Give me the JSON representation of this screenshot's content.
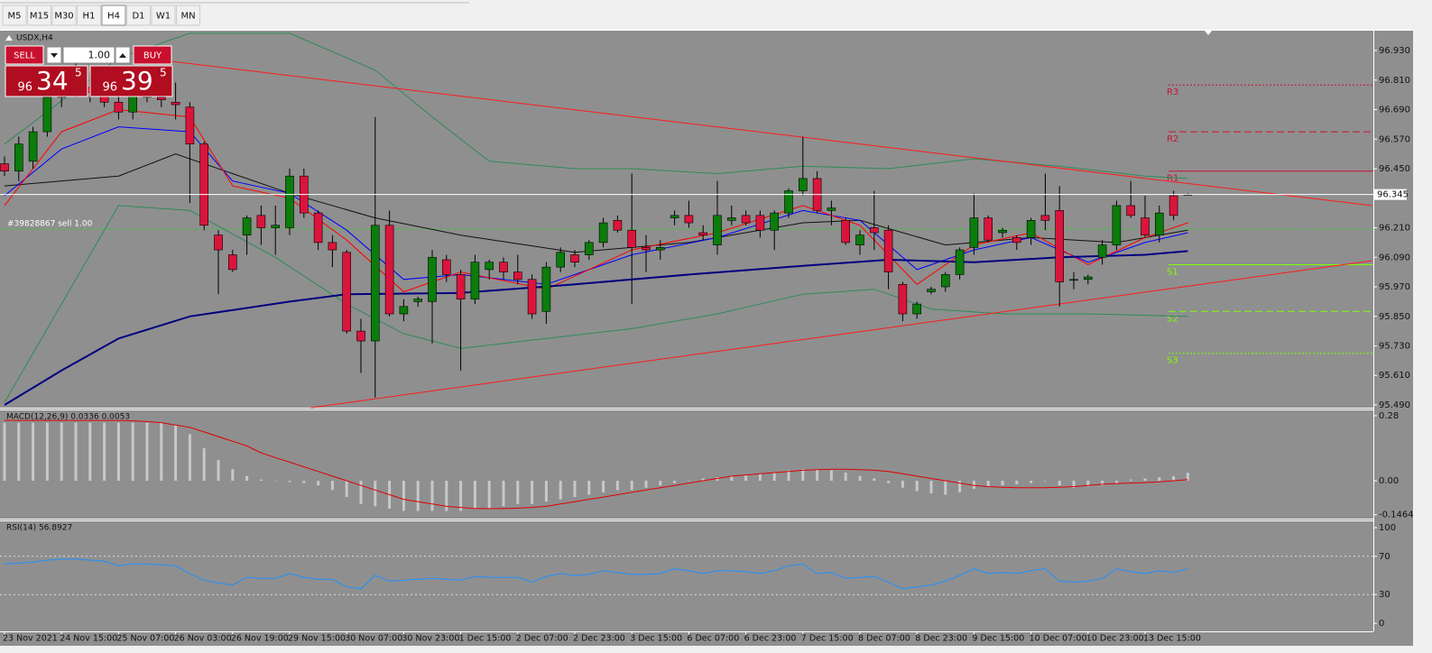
{
  "toolbar": {
    "timeframes": [
      "M5",
      "M15",
      "M30",
      "H1",
      "H4",
      "D1",
      "W1",
      "MN"
    ],
    "active": "H4"
  },
  "trade_panel": {
    "sell_label": "SELL",
    "lots": "1.00",
    "buy_label": "BUY",
    "sell_price": {
      "big": "96",
      "main": "34",
      "small": "5"
    },
    "buy_price": {
      "big": "96",
      "main": "39",
      "small": "5"
    }
  },
  "chart_data": [
    {
      "type": "candlestick",
      "title": "USDX,H4",
      "categories": [
        "23 Nov 2021",
        null,
        null,
        null,
        "24 Nov 15:00",
        null,
        null,
        null,
        "25 Nov 07:00",
        null,
        null,
        null,
        "26 Nov 03:00",
        null,
        null,
        null,
        "26 Nov 19:00",
        null,
        null,
        null,
        "29 Nov 15:00",
        null,
        null,
        null,
        "30 Nov 07:00",
        null,
        null,
        null,
        "30 Nov 23:00",
        null,
        null,
        null,
        "1 Dec 15:00",
        null,
        null,
        null,
        "2 Dec 07:00",
        null,
        null,
        null,
        "2 Dec 23:00",
        null,
        null,
        null,
        "3 Dec 15:00",
        null,
        null,
        null,
        "6 Dec 07:00",
        null,
        null,
        null,
        "6 Dec 23:00",
        null,
        null,
        null,
        "7 Dec 15:00",
        null,
        null,
        null,
        "8 Dec 07:00",
        null,
        null,
        null,
        "8 Dec 23:00",
        null,
        null,
        null,
        "9 Dec 15:00",
        null,
        null,
        null,
        "10 Dec 07:00",
        null,
        null,
        null,
        "10 Dec 23:00",
        null,
        null,
        null,
        "13 Dec 15:00",
        null,
        null,
        null
      ],
      "open": [
        96.47,
        96.44,
        96.48,
        96.6,
        96.74,
        96.8,
        96.78,
        96.76,
        96.72,
        96.68,
        96.76,
        96.74,
        96.72,
        96.7,
        96.55,
        96.18,
        96.1,
        96.18,
        96.26,
        96.21,
        96.21,
        96.42,
        96.27,
        96.15,
        96.11,
        95.79,
        95.75,
        96.22,
        95.86,
        95.91,
        95.91,
        96.08,
        96.02,
        95.92,
        96.04,
        96.07,
        96.03,
        96.0,
        95.87,
        96.05,
        96.1,
        96.1,
        96.15,
        96.24,
        96.2,
        96.13,
        96.12,
        96.25,
        96.26,
        96.19,
        96.14,
        96.24,
        96.26,
        96.26,
        96.2,
        96.27,
        96.36,
        96.41,
        96.28,
        96.24,
        96.14,
        96.21,
        96.2,
        95.98,
        95.86,
        95.95,
        95.97,
        96.02,
        96.13,
        96.25,
        96.19,
        96.17,
        96.17,
        96.26,
        96.28,
        96.0,
        96.0,
        96.09,
        96.14,
        96.3,
        96.25,
        96.18,
        96.34,
        96.345
      ],
      "high": [
        96.5,
        96.58,
        96.62,
        96.77,
        96.85,
        96.88,
        96.84,
        96.8,
        96.76,
        96.8,
        96.82,
        96.78,
        96.8,
        96.72,
        96.56,
        96.2,
        96.12,
        96.26,
        96.3,
        96.3,
        96.45,
        96.45,
        96.28,
        96.18,
        96.12,
        95.84,
        96.66,
        96.28,
        95.92,
        95.93,
        96.12,
        96.1,
        96.04,
        96.1,
        96.08,
        96.09,
        96.1,
        96.02,
        96.07,
        96.13,
        96.12,
        96.16,
        96.25,
        96.26,
        96.43,
        96.18,
        96.16,
        96.28,
        96.32,
        96.22,
        96.4,
        96.3,
        96.28,
        96.28,
        96.28,
        96.37,
        96.58,
        96.44,
        96.32,
        96.25,
        96.2,
        96.36,
        96.22,
        95.99,
        95.91,
        95.97,
        96.03,
        96.13,
        96.35,
        96.26,
        96.21,
        96.18,
        96.25,
        96.43,
        96.38,
        96.03,
        96.02,
        96.16,
        96.32,
        96.4,
        96.34,
        96.3,
        96.36,
        96.35
      ],
      "low": [
        96.42,
        96.4,
        96.45,
        96.58,
        96.7,
        96.74,
        96.72,
        96.7,
        96.65,
        96.65,
        96.72,
        96.7,
        96.65,
        96.31,
        96.2,
        95.94,
        96.03,
        96.1,
        96.14,
        96.1,
        96.18,
        96.25,
        96.12,
        96.05,
        95.78,
        95.62,
        95.52,
        95.85,
        95.83,
        95.89,
        95.74,
        95.99,
        95.63,
        95.9,
        96.0,
        96.0,
        95.98,
        95.84,
        95.82,
        96.03,
        96.05,
        96.08,
        96.13,
        96.19,
        95.9,
        96.03,
        96.08,
        96.22,
        96.21,
        96.16,
        96.1,
        96.22,
        96.22,
        96.17,
        96.12,
        96.25,
        96.34,
        96.27,
        96.22,
        96.14,
        96.1,
        96.12,
        95.96,
        95.83,
        95.84,
        95.94,
        95.95,
        96.0,
        96.1,
        96.15,
        96.17,
        96.12,
        96.14,
        96.2,
        95.89,
        95.96,
        95.98,
        96.06,
        96.12,
        96.25,
        96.17,
        96.15,
        96.24,
        96.34
      ],
      "close": [
        96.44,
        96.55,
        96.6,
        96.74,
        96.8,
        96.78,
        96.76,
        96.72,
        96.68,
        96.76,
        96.74,
        96.73,
        96.71,
        96.55,
        96.22,
        96.12,
        96.04,
        96.25,
        96.21,
        96.22,
        96.42,
        96.27,
        96.15,
        96.12,
        95.79,
        95.75,
        96.22,
        95.86,
        95.89,
        95.92,
        96.09,
        96.02,
        95.92,
        96.07,
        96.07,
        96.03,
        96.0,
        95.86,
        96.05,
        96.11,
        96.07,
        96.15,
        96.23,
        96.2,
        96.13,
        96.12,
        96.13,
        96.26,
        96.23,
        96.18,
        96.26,
        96.25,
        96.23,
        96.2,
        96.27,
        96.36,
        96.41,
        96.28,
        96.29,
        96.15,
        96.18,
        96.19,
        96.03,
        95.86,
        95.9,
        95.96,
        96.02,
        96.12,
        96.25,
        96.16,
        96.2,
        96.15,
        96.24,
        96.24,
        95.99,
        96.0,
        96.01,
        96.14,
        96.3,
        96.26,
        96.18,
        96.27,
        96.26,
        96.345
      ],
      "up_color": "#0a7d0a",
      "down_color": "#dc143c",
      "ylim": [
        95.479,
        97.007
      ],
      "yticks": [
        {
          "value": 96.93,
          "label": "96.930"
        },
        {
          "value": 96.81,
          "label": "96.810"
        },
        {
          "value": 96.69,
          "label": "96.690"
        },
        {
          "value": 96.57,
          "label": "96.570"
        },
        {
          "value": 96.45,
          "label": "96.450"
        },
        {
          "value": 96.21,
          "label": "96.210"
        },
        {
          "value": 96.09,
          "label": "96.090"
        },
        {
          "value": 95.97,
          "label": "95.970"
        },
        {
          "value": 95.85,
          "label": "95.850"
        },
        {
          "value": 95.73,
          "label": "95.730"
        },
        {
          "value": 95.61,
          "label": "95.610"
        },
        {
          "value": 95.49,
          "label": "95.490"
        }
      ],
      "current_price": {
        "value": 96.345,
        "label": "96.345"
      },
      "order_line": {
        "value": 96.205,
        "label": "#39828867 sell 1.00",
        "color": "#33cc33"
      },
      "pivots": [
        {
          "label": "R3",
          "value": 96.79,
          "color": "#cc1133",
          "dash": "dotted"
        },
        {
          "label": "R2",
          "value": 96.6,
          "color": "#cc1133",
          "dash": "dashed"
        },
        {
          "label": "R1",
          "value": 96.44,
          "color": "#cc1133",
          "dash": "solid"
        },
        {
          "label": "S1",
          "value": 96.06,
          "color": "#7fff00",
          "dash": "solid"
        },
        {
          "label": "S2",
          "value": 95.87,
          "color": "#7fff00",
          "dash": "dashed"
        },
        {
          "label": "S3",
          "value": 95.7,
          "color": "#7fff00",
          "dash": "dotted"
        }
      ],
      "overlays": [
        {
          "color": "#2e8b57",
          "width": 1,
          "x": [
            0,
            8,
            13,
            20,
            26,
            30,
            34,
            40,
            44,
            50,
            56,
            62,
            68,
            74,
            80,
            83
          ],
          "values": [
            96.55,
            96.9,
            97.0,
            97.0,
            96.85,
            96.66,
            96.48,
            96.45,
            96.45,
            96.43,
            96.46,
            96.45,
            96.49,
            96.46,
            96.42,
            96.41
          ]
        },
        {
          "color": "#2e8b57",
          "width": 1,
          "x": [
            0,
            8,
            13,
            19,
            24,
            28,
            32,
            38,
            44,
            50,
            56,
            61,
            65,
            70,
            76,
            83
          ],
          "values": [
            95.5,
            96.3,
            96.28,
            96.09,
            95.9,
            95.78,
            95.72,
            95.76,
            95.8,
            95.86,
            95.94,
            95.96,
            95.88,
            95.86,
            95.86,
            95.85
          ]
        },
        {
          "color": "#111111",
          "width": 1,
          "x": [
            0,
            8,
            12,
            16,
            20,
            26,
            32,
            40,
            48,
            56,
            60,
            66,
            72,
            78,
            83
          ],
          "values": [
            96.38,
            96.42,
            96.51,
            96.43,
            96.35,
            96.25,
            96.18,
            96.11,
            96.15,
            96.23,
            96.24,
            96.14,
            96.17,
            96.15,
            96.2
          ]
        },
        {
          "color": "#0000ff",
          "width": 1,
          "x": [
            0,
            4,
            8,
            13,
            16,
            20,
            24,
            28,
            32,
            38,
            44,
            50,
            56,
            60,
            64,
            68,
            72,
            76,
            80,
            83
          ],
          "values": [
            96.34,
            96.53,
            96.62,
            96.6,
            96.4,
            96.35,
            96.2,
            96.0,
            96.02,
            95.98,
            96.1,
            96.17,
            96.28,
            96.24,
            96.04,
            96.12,
            96.17,
            96.07,
            96.15,
            96.19
          ]
        },
        {
          "color": "#ff0000",
          "width": 1,
          "x": [
            0,
            4,
            8,
            13,
            16,
            20,
            24,
            28,
            32,
            38,
            44,
            50,
            56,
            60,
            64,
            68,
            72,
            76,
            80,
            83
          ],
          "values": [
            96.3,
            96.6,
            96.69,
            96.66,
            96.38,
            96.33,
            96.16,
            95.95,
            96.03,
            95.96,
            96.12,
            96.19,
            96.3,
            96.22,
            95.98,
            96.14,
            96.19,
            96.06,
            96.17,
            96.23
          ]
        },
        {
          "color": "#000080",
          "width": 2,
          "x": [
            0,
            4,
            8,
            13,
            20,
            24,
            32,
            40,
            48,
            56,
            62,
            68,
            74,
            80,
            83
          ],
          "values": [
            95.49,
            95.63,
            95.76,
            95.85,
            95.91,
            95.94,
            95.945,
            95.98,
            96.02,
            96.055,
            96.08,
            96.07,
            96.09,
            96.1,
            96.115
          ]
        },
        {
          "color": "#ff1a1a",
          "width": 1,
          "x": [
            11.7,
            95.9
          ],
          "values": [
            96.886,
            96.3
          ]
        },
        {
          "color": "#ff1a1a",
          "width": 1,
          "x": [
            21.5,
            95.9
          ],
          "values": [
            95.479,
            96.076
          ]
        }
      ]
    },
    {
      "type": "bar",
      "title": "MACD(12,26,9) 0.0336 0.0053",
      "ylim": [
        -0.163,
        0.303
      ],
      "yticks": [
        0.28,
        {
          "value": 0,
          "label": "0.00"
        },
        -0.1464
      ],
      "series": [
        {
          "type": "bar",
          "color": "#c8c8c8",
          "values": [
            0.25,
            0.25,
            0.25,
            0.25,
            0.25,
            0.25,
            0.25,
            0.25,
            0.25,
            0.25,
            0.25,
            0.25,
            0.24,
            0.2,
            0.14,
            0.09,
            0.05,
            0.02,
            0.005,
            0,
            -0.005,
            -0.01,
            -0.02,
            -0.04,
            -0.07,
            -0.1,
            -0.11,
            -0.12,
            -0.13,
            -0.13,
            -0.13,
            -0.13,
            -0.13,
            -0.12,
            -0.12,
            -0.11,
            -0.1,
            -0.1,
            -0.09,
            -0.08,
            -0.07,
            -0.06,
            -0.05,
            -0.04,
            -0.04,
            -0.03,
            -0.02,
            -0.01,
            0,
            0.01,
            0.015,
            0.02,
            0.025,
            0.03,
            0.035,
            0.045,
            0.05,
            0.05,
            0.045,
            0.035,
            0.02,
            0.01,
            -0.01,
            -0.03,
            -0.045,
            -0.055,
            -0.06,
            -0.05,
            -0.035,
            -0.025,
            -0.02,
            -0.015,
            -0.01,
            0,
            -0.02,
            -0.03,
            -0.025,
            -0.02,
            -0.01,
            0.005,
            0.01,
            0.015,
            0.02,
            0.034
          ]
        },
        {
          "type": "line",
          "color": "#e00000",
          "values": [
            0.26,
            0.26,
            0.26,
            0.26,
            0.26,
            0.26,
            0.26,
            0.26,
            0.26,
            0.258,
            0.255,
            0.25,
            0.24,
            0.23,
            0.21,
            0.19,
            0.17,
            0.15,
            0.12,
            0.1,
            0.08,
            0.06,
            0.04,
            0.02,
            0,
            -0.02,
            -0.04,
            -0.06,
            -0.08,
            -0.09,
            -0.1,
            -0.11,
            -0.115,
            -0.12,
            -0.12,
            -0.12,
            -0.118,
            -0.115,
            -0.11,
            -0.1,
            -0.09,
            -0.08,
            -0.07,
            -0.06,
            -0.05,
            -0.04,
            -0.03,
            -0.02,
            -0.01,
            0,
            0.01,
            0.02,
            0.025,
            0.03,
            0.035,
            0.04,
            0.045,
            0.048,
            0.05,
            0.05,
            0.048,
            0.045,
            0.04,
            0.03,
            0.02,
            0.01,
            0,
            -0.01,
            -0.02,
            -0.025,
            -0.028,
            -0.03,
            -0.03,
            -0.03,
            -0.028,
            -0.025,
            -0.02,
            -0.015,
            -0.012,
            -0.01,
            -0.008,
            -0.005,
            0,
            0.005
          ]
        }
      ]
    },
    {
      "type": "line",
      "title": "RSI(14) 56.8927",
      "color": "#1e90ff",
      "ylim": [
        -8.5,
        106.6
      ],
      "yticks": [
        100,
        70,
        30,
        0
      ],
      "levels": [
        70,
        30
      ],
      "values": [
        62,
        63,
        64,
        66,
        67,
        67,
        66,
        65,
        60,
        62,
        62,
        61,
        60,
        52,
        45,
        42,
        40,
        48,
        47,
        47,
        52,
        48,
        46,
        46,
        38,
        36,
        50,
        44,
        45,
        46,
        47,
        46,
        45,
        49,
        48,
        48,
        48,
        43,
        49,
        52,
        50,
        51,
        55,
        53,
        51,
        51,
        52,
        57,
        55,
        52,
        55,
        55,
        54,
        52,
        55,
        60,
        62,
        52,
        53,
        47,
        48,
        49,
        43,
        36,
        38,
        40,
        44,
        50,
        57,
        52,
        53,
        52,
        55,
        57,
        44,
        43,
        44,
        47,
        57,
        54,
        52,
        55,
        53,
        57
      ]
    }
  ]
}
